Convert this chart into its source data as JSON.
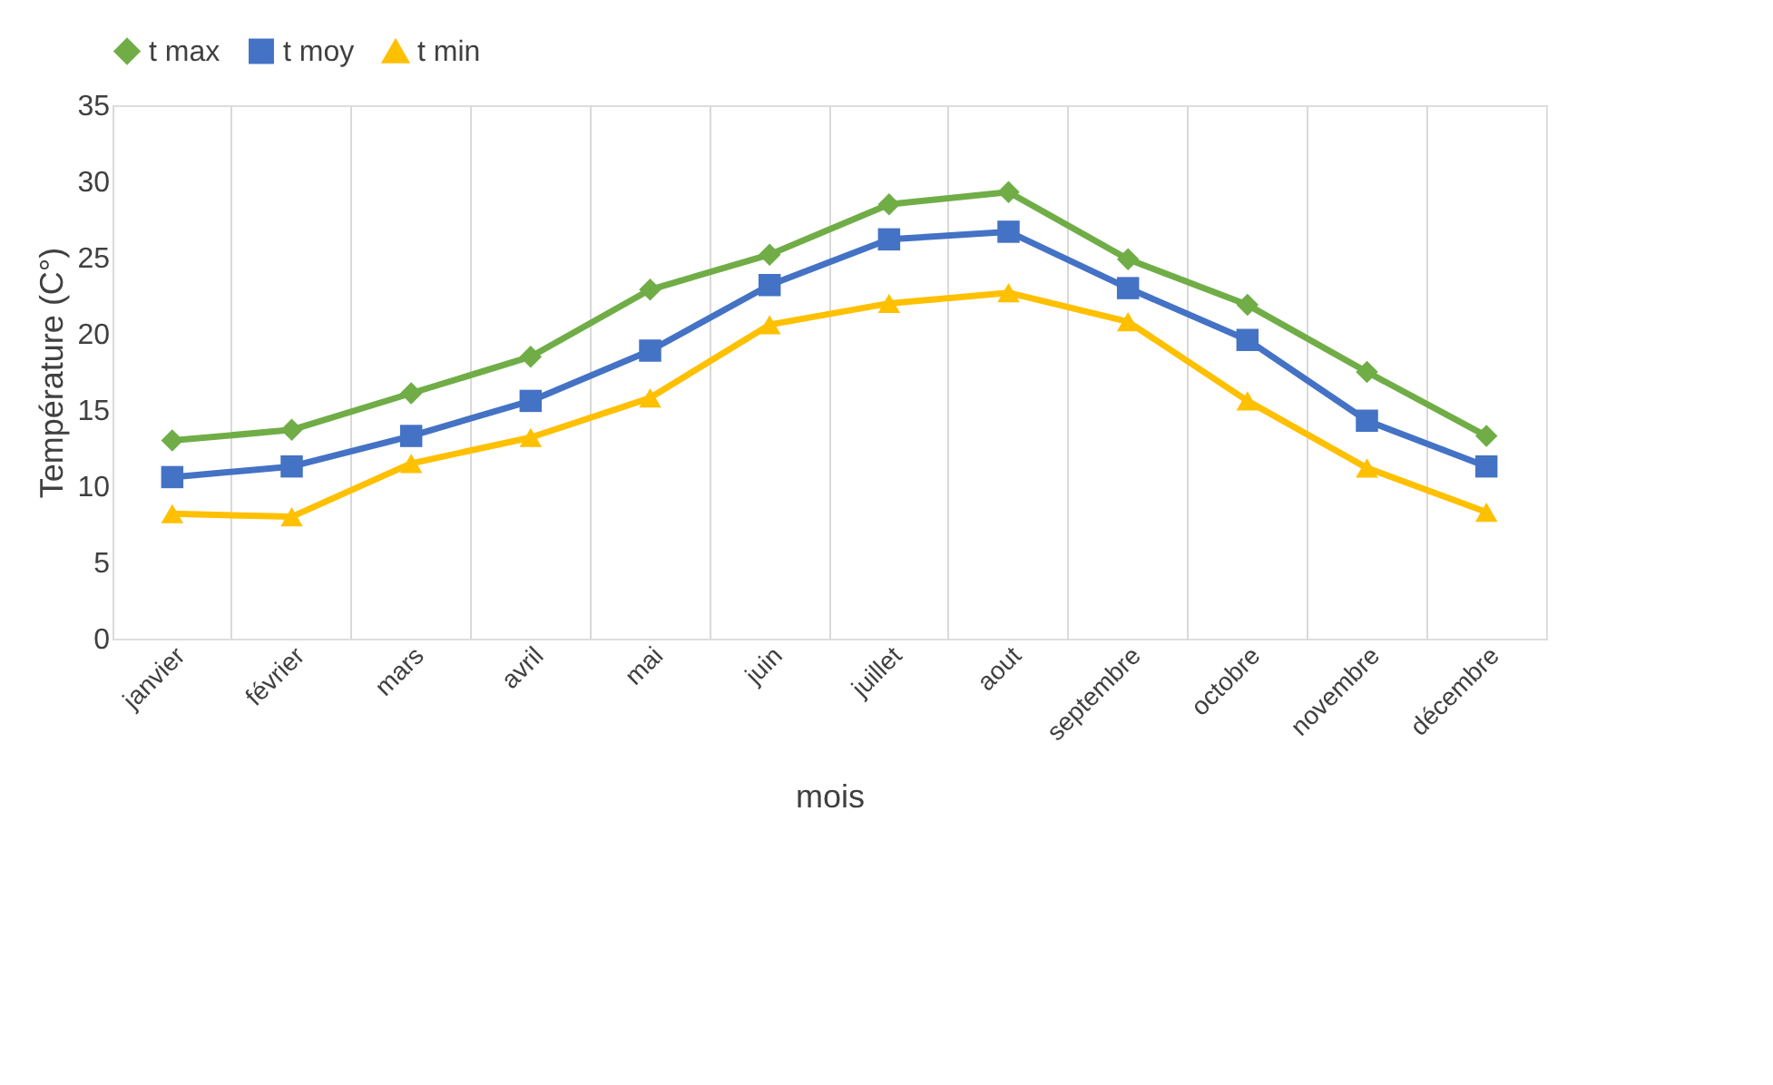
{
  "chart_data": {
    "type": "line",
    "xlabel": "mois",
    "ylabel": "Température (C°)",
    "categories": [
      "janvier",
      "février",
      "mars",
      "avril",
      "mai",
      "juin",
      "juillet",
      "aout",
      "septembre",
      "octobre",
      "novembre",
      "décembre"
    ],
    "series": [
      {
        "name": "t max",
        "color": "#70ad47",
        "marker": "diamond",
        "values": [
          13.0,
          13.7,
          16.1,
          18.5,
          22.9,
          25.2,
          28.5,
          29.3,
          24.9,
          21.9,
          17.5,
          13.3
        ]
      },
      {
        "name": "t moy",
        "color": "#4472c4",
        "marker": "square",
        "values": [
          10.6,
          11.3,
          13.3,
          15.6,
          18.9,
          23.2,
          26.2,
          26.7,
          23.0,
          19.6,
          14.3,
          11.3
        ]
      },
      {
        "name": "t min",
        "color": "#ffc000",
        "marker": "triangle",
        "values": [
          8.2,
          8.0,
          11.5,
          13.2,
          15.8,
          20.6,
          22.0,
          22.7,
          20.8,
          15.6,
          11.2,
          8.3
        ]
      }
    ],
    "ylim": [
      0,
      35
    ],
    "yticks": [
      0,
      5,
      10,
      15,
      20,
      25,
      30,
      35
    ],
    "grid": "x",
    "legend": "top",
    "line_style": "solid"
  }
}
